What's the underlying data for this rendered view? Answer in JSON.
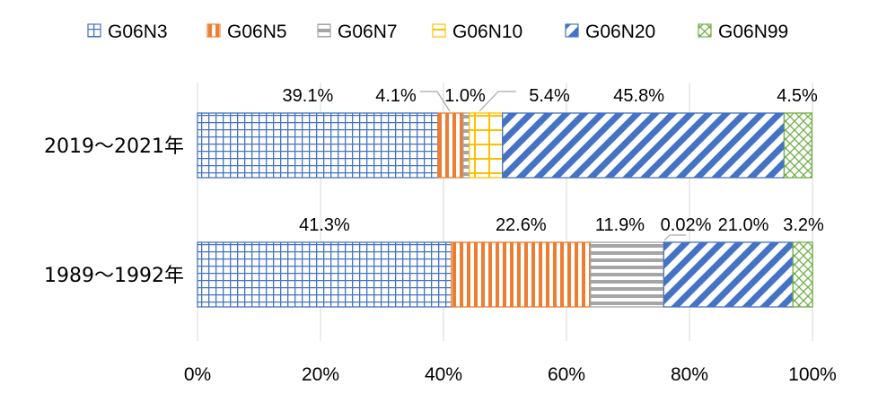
{
  "chart_data": {
    "type": "bar",
    "orientation": "horizontal",
    "stacked": "percent",
    "categories": [
      "2019～2021年",
      "1989～1992年"
    ],
    "series": [
      {
        "name": "G06N3",
        "values": [
          39.1,
          41.3
        ],
        "labels": [
          "39.1%",
          "41.3%"
        ],
        "color": "#4472c4",
        "pattern": "grid"
      },
      {
        "name": "G06N5",
        "values": [
          4.1,
          22.6
        ],
        "labels": [
          "4.1%",
          "22.6%"
        ],
        "color": "#ed7d31",
        "pattern": "vertical"
      },
      {
        "name": "G06N7",
        "values": [
          1.0,
          11.9
        ],
        "labels": [
          "1.0%",
          "11.9%"
        ],
        "color": "#a5a5a5",
        "pattern": "horizontal"
      },
      {
        "name": "G06N10",
        "values": [
          5.4,
          0.02
        ],
        "labels": [
          "5.4%",
          "0.02%"
        ],
        "color": "#ffc000",
        "pattern": "grid"
      },
      {
        "name": "G06N20",
        "values": [
          45.8,
          21.0
        ],
        "labels": [
          "45.8%",
          "21.0%"
        ],
        "color": "#4472c4",
        "pattern": "diagonal"
      },
      {
        "name": "G06N99",
        "values": [
          4.5,
          3.2
        ],
        "labels": [
          "4.5%",
          "3.2%"
        ],
        "color": "#70ad47",
        "pattern": "cross"
      }
    ],
    "x_ticks": [
      "0%",
      "20%",
      "40%",
      "60%",
      "80%",
      "100%"
    ],
    "xlim": [
      0,
      100
    ],
    "legend_position": "top",
    "grid": true,
    "title": "",
    "xlabel": "",
    "ylabel": ""
  }
}
